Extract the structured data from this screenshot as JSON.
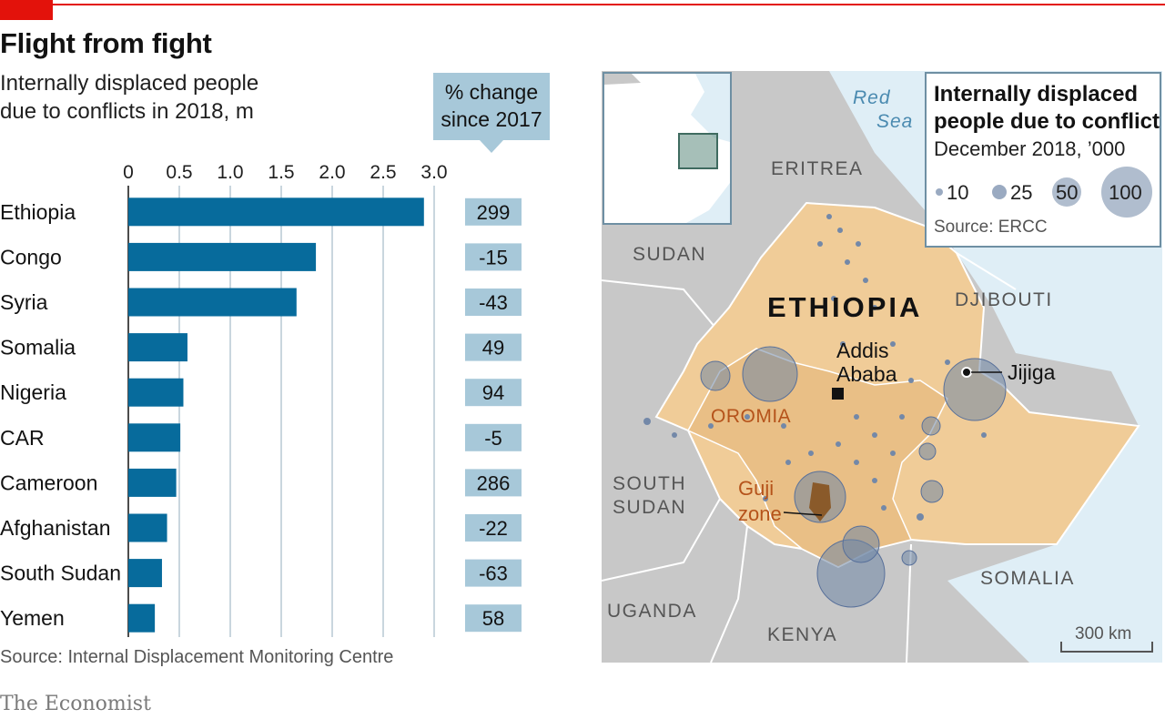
{
  "title": "Flight from fight",
  "subtitle_line1": "Internally displaced people",
  "subtitle_line2": "due to conflicts in 2018, m",
  "change_header_line1": "% change",
  "change_header_line2": "since 2017",
  "source": "Source: Internal Displacement Monitoring Centre",
  "brand": "The Economist",
  "colors": {
    "bar": "#076b9c",
    "change_box": "#a7c8d9",
    "accent": "#e3120b",
    "map_land": "#f0cc98",
    "bubble": "#6f86a6"
  },
  "chart_data": [
    {
      "type": "bar",
      "orientation": "horizontal",
      "categories": [
        "Ethiopia",
        "Congo",
        "Syria",
        "Somalia",
        "Nigeria",
        "CAR",
        "Cameroon",
        "Afghanistan",
        "South Sudan",
        "Yemen"
      ],
      "values": [
        2.9,
        1.84,
        1.65,
        0.58,
        0.54,
        0.51,
        0.47,
        0.38,
        0.33,
        0.26
      ],
      "pct_change_since_2017": [
        "299",
        "-15",
        "-43",
        "49",
        "94",
        "-5",
        "286",
        "-22",
        "-63",
        "58"
      ],
      "xlim": [
        0,
        3.0
      ],
      "ticks": [
        0,
        0.5,
        1.0,
        1.5,
        2.0,
        2.5,
        3.0
      ],
      "tick_labels": [
        "0",
        "0.5",
        "1.0",
        "1.5",
        "2.0",
        "2.5",
        "3.0"
      ],
      "grid": true
    }
  ],
  "map": {
    "legend_title_line1": "Internally displaced",
    "legend_title_line2": "people due to conflict",
    "legend_subtitle": "December 2018, ’000",
    "legend_sizes": [
      "10",
      "25",
      "50",
      "100"
    ],
    "legend_source": "Source: ERCC",
    "labels": {
      "red_sea_1": "Red",
      "red_sea_2": "Sea",
      "eritrea": "ERITREA",
      "sudan": "SUDAN",
      "ethiopia": "ETHIOPIA",
      "djibouti": "DJIBOUTI",
      "addis_1": "Addis",
      "addis_2": "Ababa",
      "jijiga": "Jijiga",
      "oromia": "OROMIA",
      "south_sudan_1": "SOUTH",
      "south_sudan_2": "SUDAN",
      "guji_1": "Guji",
      "guji_2": "zone",
      "somalia": "SOMALIA",
      "uganda": "UGANDA",
      "kenya": "KENYA",
      "scale": "300 km"
    }
  }
}
